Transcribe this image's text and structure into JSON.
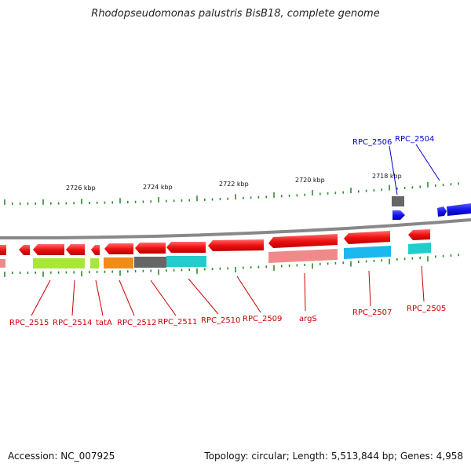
{
  "title": "Rhodopseudomonas palustris BisB18, complete genome",
  "footer": {
    "accession": "Accession: NC_007925",
    "stats": "Topology: circular; Length: 5,513,844 bp; Genes: 4,958"
  },
  "kbp_labels": [
    "2726 kbp",
    "2724 kbp",
    "2722 kbp",
    "2720 kbp",
    "2718 kbp"
  ],
  "gene_labels": [
    {
      "text": "RPC_2506",
      "color": "#0000cc"
    },
    {
      "text": "RPC_2504",
      "color": "#0000cc"
    },
    {
      "text": "RPC_2515",
      "color": "#cc0000"
    },
    {
      "text": "RPC_2514",
      "color": "#cc0000"
    },
    {
      "text": "tatA",
      "color": "#cc0000"
    },
    {
      "text": "RPC_2512",
      "color": "#cc0000"
    },
    {
      "text": "RPC_2511",
      "color": "#cc0000"
    },
    {
      "text": "RPC_2510",
      "color": "#cc0000"
    },
    {
      "text": "RPC_2509",
      "color": "#cc0000"
    },
    {
      "text": "argS",
      "color": "#cc0000"
    },
    {
      "text": "RPC_2507",
      "color": "#cc0000"
    },
    {
      "text": "RPC_2505",
      "color": "#cc0000"
    }
  ],
  "colors": {
    "forward_gene": "#1a1aff",
    "reverse_gene": "#ff1a1a",
    "backbone": "#888888",
    "tick": "#2e8b2e"
  }
}
